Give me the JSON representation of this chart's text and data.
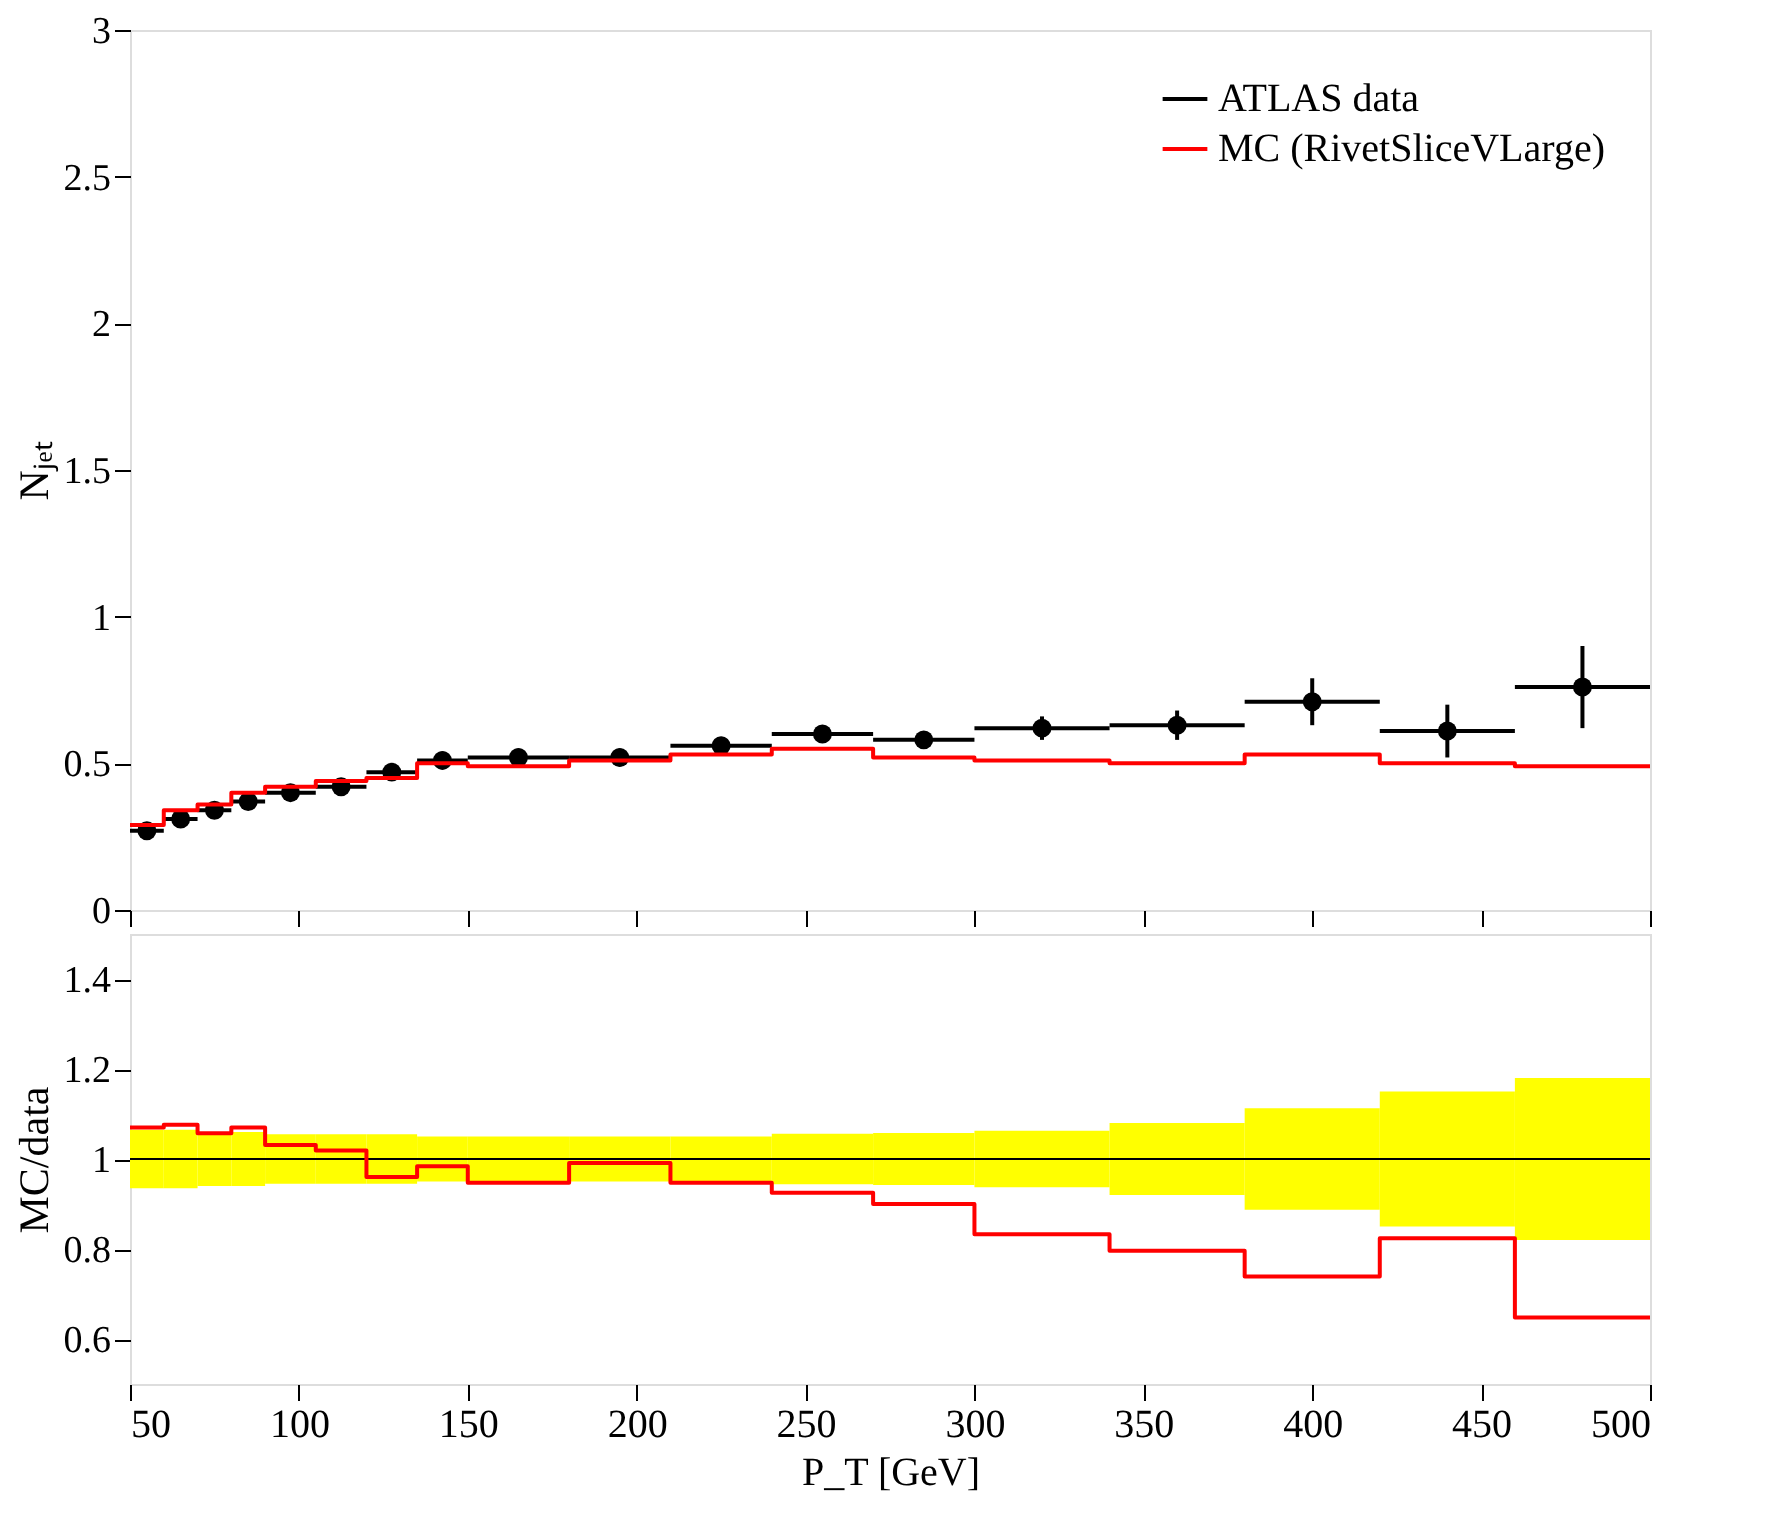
{
  "chart_data": [
    {
      "type": "scatter",
      "ylabel": "Nⱼₑₜ",
      "xlim": [
        50,
        500
      ],
      "xticks": [
        50,
        100,
        150,
        200,
        250,
        300,
        350,
        400,
        450,
        500
      ],
      "ylim": [
        0,
        3
      ],
      "yticks": [
        0,
        0.5,
        1,
        1.5,
        2,
        2.5,
        3
      ],
      "tick_labels": "y",
      "legend": "top right",
      "grid": false,
      "series": [
        {
          "name": "ATLAS data",
          "color": "#000000",
          "marker": "circle",
          "x": [
            55,
            65,
            75,
            85,
            97.5,
            112.5,
            127.5,
            142.5,
            165,
            195,
            225,
            255,
            285,
            320,
            360,
            400,
            440,
            480
          ],
          "values": [
            0.27,
            0.31,
            0.34,
            0.37,
            0.4,
            0.42,
            0.47,
            0.51,
            0.52,
            0.52,
            0.56,
            0.6,
            0.58,
            0.62,
            0.63,
            0.71,
            0.61,
            0.76
          ],
          "errors": [
            0.02,
            0.02,
            0.02,
            0.02,
            0.02,
            0.02,
            0.03,
            0.03,
            0.03,
            0.03,
            0.03,
            0.03,
            0.03,
            0.04,
            0.05,
            0.08,
            0.09,
            0.14
          ],
          "xerrors": [
            5,
            5,
            5,
            5,
            7.5,
            7.5,
            7.5,
            7.5,
            15,
            15,
            15,
            15,
            15,
            20,
            20,
            20,
            20,
            20
          ]
        },
        {
          "name": "MC (RivetSliceVLarge)",
          "type": "step",
          "color": "#ff0000",
          "x": [
            50,
            60,
            70,
            80,
            90,
            105,
            120,
            135,
            150,
            180,
            210,
            240,
            270,
            300,
            340,
            380,
            420,
            460,
            500
          ],
          "values": [
            0.29,
            0.34,
            0.36,
            0.4,
            0.42,
            0.44,
            0.45,
            0.5,
            0.49,
            0.51,
            0.53,
            0.55,
            0.52,
            0.51,
            0.5,
            0.53,
            0.5,
            0.49,
            0.49
          ]
        }
      ]
    },
    {
      "type": "step",
      "ylabel": "MC/data",
      "xlabel": "P_T [GeV]",
      "xlim": [
        50,
        500
      ],
      "xticks": [
        50,
        100,
        150,
        200,
        250,
        300,
        350,
        400,
        450,
        500
      ],
      "ylim": [
        0.5,
        1.5
      ],
      "yticks": [
        0.6,
        0.8,
        1,
        1.2,
        1.4
      ],
      "grid": false,
      "series": [
        {
          "color": "#000000",
          "colors": [
            "#ffff00",
            "#ffff00",
            "#ffff00",
            "#ffff00",
            "#ffff00",
            "#ffff00",
            "#ffff00",
            "#ffff00",
            "#ffff00",
            "#ffff00",
            "#ffff00",
            "#ffff00",
            "#ffff00",
            "#ffff00",
            "#ffff00",
            "#ffff00",
            "#ffff00",
            "#ffff00",
            "#ffff00"
          ],
          "x": [
            50,
            60,
            70,
            80,
            90,
            105,
            120,
            135,
            150,
            180,
            210,
            240,
            270,
            300,
            340,
            380,
            420,
            460,
            500
          ],
          "values": [
            1,
            1,
            1,
            1,
            1,
            1,
            1,
            1,
            1,
            1,
            1,
            1,
            1,
            1,
            1,
            1,
            1,
            1,
            1
          ],
          "lower": [
            0.935,
            0.935,
            0.94,
            0.94,
            0.945,
            0.945,
            0.945,
            0.95,
            0.95,
            0.95,
            0.95,
            0.944,
            0.942,
            0.937,
            0.92,
            0.887,
            0.85,
            0.82,
            0.82
          ],
          "upper": [
            1.065,
            1.065,
            1.06,
            1.06,
            1.055,
            1.055,
            1.055,
            1.05,
            1.05,
            1.05,
            1.05,
            1.056,
            1.058,
            1.063,
            1.08,
            1.113,
            1.15,
            1.18,
            1.18
          ]
        },
        {
          "color": "#ff0000",
          "x": [
            50,
            60,
            70,
            80,
            90,
            105,
            120,
            135,
            150,
            180,
            210,
            240,
            270,
            300,
            340,
            380,
            420,
            460,
            500
          ],
          "values": [
            1.07,
            1.076,
            1.057,
            1.07,
            1.031,
            1.019,
            0.96,
            0.984,
            0.947,
            0.991,
            0.947,
            0.925,
            0.9,
            0.833,
            0.796,
            0.739,
            0.824,
            0.648,
            0.648
          ]
        }
      ]
    }
  ]
}
